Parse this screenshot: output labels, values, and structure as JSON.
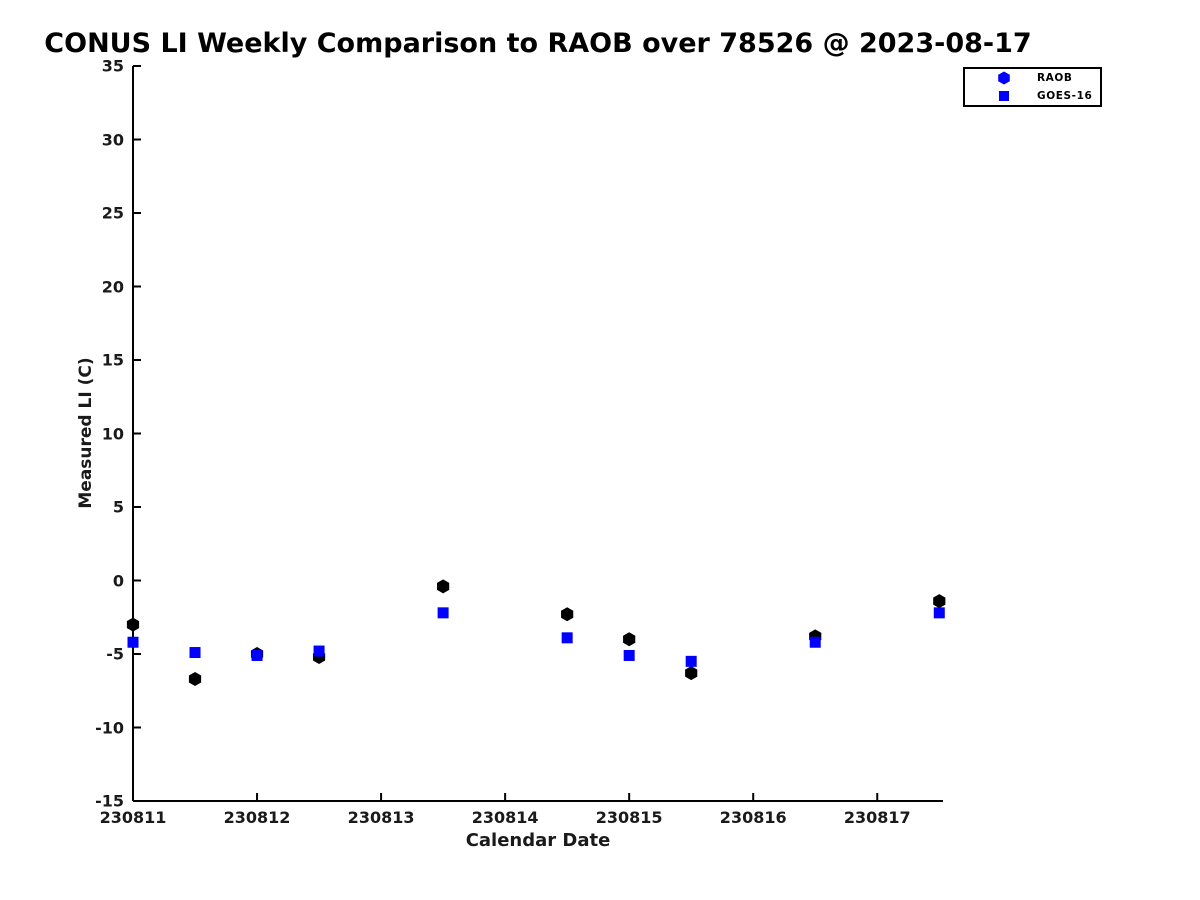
{
  "colors": {
    "raob_marker": "#000000",
    "goes16_marker": "#0000ff",
    "legend_marker": "#0000ff",
    "axis": "#000000",
    "tick_text": "#1a1a1a",
    "background": "#ffffff"
  },
  "legend": {
    "items": [
      {
        "label": "RAOB",
        "marker": "hexagon"
      },
      {
        "label": "GOES-16",
        "marker": "square"
      }
    ]
  },
  "chart_data": {
    "type": "scatter",
    "title": "CONUS LI Weekly Comparison to RAOB over 78526 @ 2023-08-17",
    "xlabel": "Calendar Date",
    "ylabel": "Measured LI (C)",
    "xlim": [
      230811,
      230817.53
    ],
    "ylim": [
      -15,
      35
    ],
    "x_ticks": [
      230811,
      230812,
      230813,
      230814,
      230815,
      230816,
      230817
    ],
    "y_ticks": [
      -15,
      -10,
      -5,
      0,
      5,
      10,
      15,
      20,
      25,
      30,
      35
    ],
    "grid": false,
    "legend_position": "upper-right-outside",
    "x": [
      230811,
      230811.5,
      230812,
      230812.5,
      230813.5,
      230814.5,
      230815,
      230815.5,
      230816.5,
      230817.5
    ],
    "series": [
      {
        "name": "RAOB",
        "marker": "hexagon",
        "color": "#000000",
        "y": [
          -3.0,
          -6.7,
          -5.0,
          -5.2,
          -0.4,
          -2.3,
          -4.0,
          -6.3,
          -3.8,
          -1.4
        ]
      },
      {
        "name": "GOES-16",
        "marker": "square",
        "color": "#0000ff",
        "y": [
          -4.2,
          -4.9,
          -5.1,
          -4.8,
          -2.2,
          -3.9,
          -5.1,
          -5.5,
          -4.2,
          -2.2
        ]
      }
    ]
  }
}
